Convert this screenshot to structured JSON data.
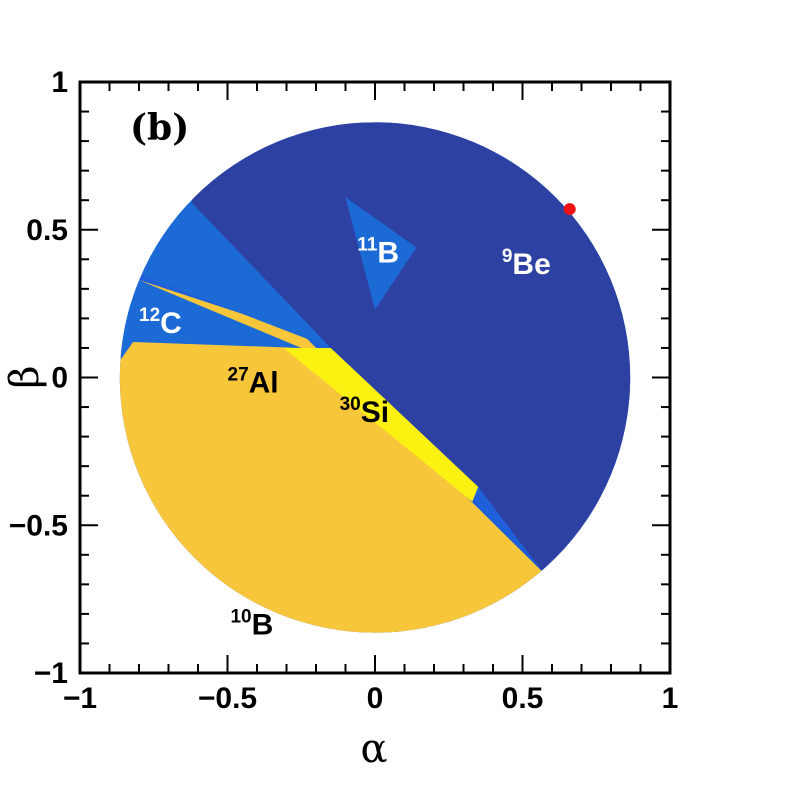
{
  "chart_data": {
    "type": "region-map",
    "panel_label": "(b)",
    "xlabel": "α",
    "ylabel": "β",
    "xlim": [
      -1,
      1
    ],
    "ylim": [
      -1,
      1
    ],
    "xticks": [
      {
        "value": -1,
        "label": "−1"
      },
      {
        "value": -0.5,
        "label": "−0.5"
      },
      {
        "value": 0,
        "label": "0"
      },
      {
        "value": 0.5,
        "label": "0.5"
      },
      {
        "value": 1,
        "label": "1"
      }
    ],
    "yticks": [
      {
        "value": -1,
        "label": "−1"
      },
      {
        "value": -0.5,
        "label": "−0.5"
      },
      {
        "value": 0,
        "label": "0"
      },
      {
        "value": 0.5,
        "label": "0.5"
      },
      {
        "value": 1,
        "label": "1"
      }
    ],
    "disk": {
      "center": [
        0,
        0
      ],
      "radius": 0.865
    },
    "regions": [
      {
        "name": "10B",
        "mass": "10",
        "element": "B",
        "color": "#1f5fd9",
        "polygon": "disk",
        "label": {
          "x": -0.49,
          "y": -0.87,
          "color": "#000000"
        }
      },
      {
        "name": "27Al",
        "mass": "27",
        "element": "Al",
        "color": "#f8c63a",
        "polygon": [
          [
            -0.87,
            0.05
          ],
          [
            -0.8,
            0.33
          ],
          [
            -0.25,
            0.15
          ],
          [
            0.57,
            -0.66
          ],
          [
            0.45,
            -1.2
          ],
          [
            -1.2,
            -1.2
          ],
          [
            -1.2,
            0.05
          ]
        ],
        "label": {
          "x": -0.5,
          "y": -0.05,
          "color": "#000000"
        }
      },
      {
        "name": "12C",
        "mass": "12",
        "element": "C",
        "color": "#1b6ad6",
        "polygon": [
          [
            -1.2,
            0.05
          ],
          [
            -0.87,
            0.05
          ],
          [
            -0.82,
            0.12
          ],
          [
            -0.25,
            0.1
          ],
          [
            -0.8,
            0.33
          ],
          [
            -1.2,
            0.33
          ]
        ],
        "label": {
          "x": -0.8,
          "y": 0.15,
          "color": "#ffffff"
        }
      },
      {
        "name": "9Be",
        "mass": "9",
        "element": "Be",
        "color": "#2d41a3",
        "polygon": [
          [
            -0.62,
            0.59
          ],
          [
            -0.15,
            0.1
          ],
          [
            0.35,
            -0.37
          ],
          [
            0.57,
            -0.66
          ],
          [
            1.3,
            -0.3
          ],
          [
            1.3,
            1.3
          ],
          [
            -0.62,
            1.3
          ]
        ],
        "label": {
          "x": 0.43,
          "y": 0.35,
          "color": "#ffffff"
        }
      },
      {
        "name": "upper-blue",
        "mass": "",
        "element": "",
        "color": "#1b6ad6",
        "polygon": [
          [
            -1.2,
            0.33
          ],
          [
            -0.8,
            0.35
          ],
          [
            -0.15,
            0.1
          ],
          [
            -0.62,
            0.59
          ],
          [
            -1.2,
            0.59
          ]
        ],
        "label": null
      },
      {
        "name": "11B",
        "mass": "11",
        "element": "B",
        "color": "#1b6ad6",
        "polygon": [
          [
            -0.1,
            0.61
          ],
          [
            0.14,
            0.44
          ],
          [
            0.0,
            0.23
          ]
        ],
        "label": {
          "x": -0.06,
          "y": 0.39,
          "color": "#ffffff"
        }
      },
      {
        "name": "30Si",
        "mass": "30",
        "element": "Si",
        "color": "#fbf212",
        "polygon": [
          [
            -0.31,
            0.1
          ],
          [
            -0.15,
            0.1
          ],
          [
            0.35,
            -0.37
          ],
          [
            0.33,
            -0.42
          ]
        ],
        "label": {
          "x": -0.12,
          "y": -0.15,
          "color": "#000000"
        }
      }
    ],
    "marker": {
      "x": 0.66,
      "y": 0.57,
      "color": "#ee1111"
    }
  }
}
